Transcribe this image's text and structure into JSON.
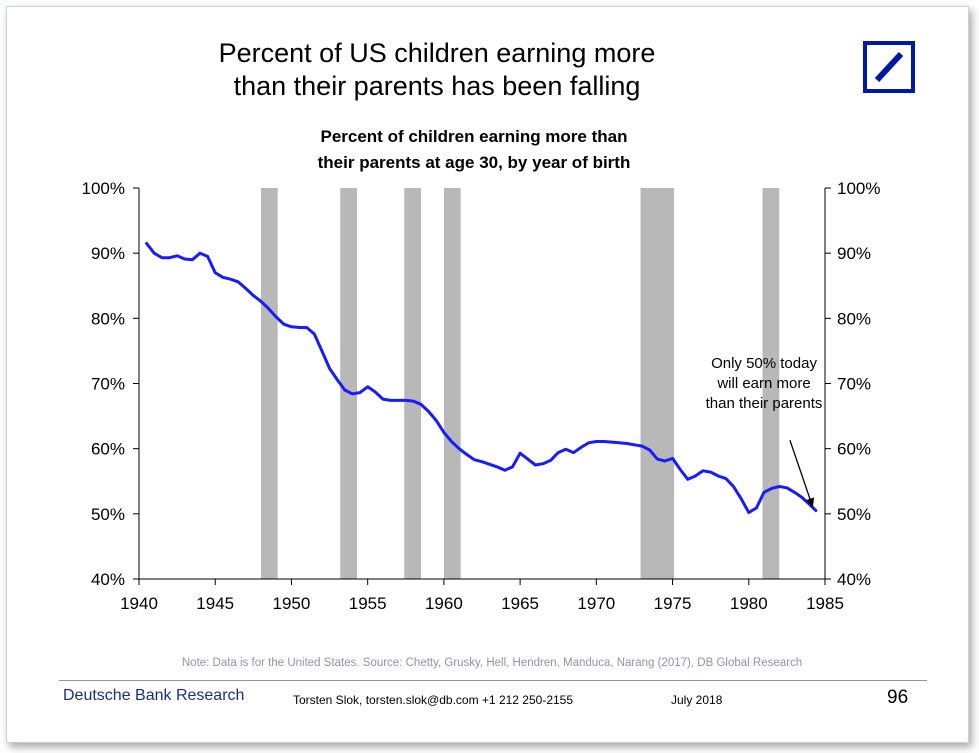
{
  "slide": {
    "title_lines": [
      "Percent of US children earning more",
      "than their parents has been falling"
    ],
    "footer": {
      "note": "Note: Data is for the United States. Source: Chetty, Grusky, Hell, Hendren, Manduca, Narang (2017), DB Global Research",
      "brand": "Deutsche Bank Research",
      "contact": "Torsten Slok, torsten.slok@db.com  +1 212 250-2155",
      "date": "July 2018",
      "page_number": "96"
    },
    "logo": {
      "name": "deutsche-bank-logo",
      "color": "#0018a8"
    }
  },
  "chart_data": {
    "type": "line",
    "title_lines": [
      "Percent of children earning more than",
      "their parents at age 30, by year of birth"
    ],
    "xlabel": "",
    "ylabel": "",
    "xlim": [
      1940,
      1985
    ],
    "ylim": [
      40,
      100
    ],
    "x_ticks": [
      "1940",
      "1945",
      "1950",
      "1955",
      "1960",
      "1965",
      "1970",
      "1975",
      "1980",
      "1985"
    ],
    "y_ticks_left": [
      "40%",
      "50%",
      "60%",
      "70%",
      "80%",
      "90%",
      "100%"
    ],
    "y_ticks_right": [
      "40%",
      "50%",
      "60%",
      "70%",
      "80%",
      "90%",
      "100%"
    ],
    "line_color": "#1a1aff",
    "shade_color": "#b8b8b8",
    "recession_bands": [
      [
        1948.0,
        1949.1
      ],
      [
        1953.2,
        1954.3
      ],
      [
        1957.4,
        1958.5
      ],
      [
        1960.0,
        1961.1
      ],
      [
        1972.9,
        1975.1
      ],
      [
        1980.9,
        1982.0
      ]
    ],
    "series": [
      {
        "x": [
          1940.5,
          1941,
          1941.5,
          1942,
          1942.5,
          1943,
          1943.5,
          1944,
          1944.5,
          1945,
          1945.5,
          1946,
          1946.5,
          1947,
          1947.5,
          1948,
          1948.5,
          1949,
          1949.5,
          1950,
          1950.5,
          1951,
          1951.5,
          1952,
          1952.5,
          1953,
          1953.5,
          1954,
          1954.5,
          1955,
          1955.5,
          1956,
          1956.5,
          1957,
          1957.5,
          1958,
          1958.5,
          1959,
          1959.5,
          1960,
          1960.5,
          1961,
          1961.5,
          1962,
          1962.5,
          1963,
          1963.5,
          1964,
          1964.5,
          1965,
          1965.5,
          1966,
          1966.5,
          1967,
          1967.5,
          1968,
          1968.5,
          1969,
          1969.5,
          1970,
          1970.5,
          1971,
          1971.5,
          1972,
          1972.5,
          1973,
          1973.5,
          1974,
          1974.5,
          1975,
          1975.5,
          1976,
          1976.5,
          1977,
          1977.5,
          1978,
          1978.5,
          1979,
          1979.5,
          1980,
          1980.5,
          1981,
          1981.5,
          1982,
          1982.5,
          1983,
          1983.5,
          1984,
          1984.4
        ],
        "values": [
          91.5,
          90.0,
          89.3,
          89.3,
          89.6,
          89.1,
          89.0,
          90.0,
          89.5,
          87.0,
          86.3,
          86.0,
          85.6,
          84.6,
          83.5,
          82.6,
          81.5,
          80.2,
          79.1,
          78.7,
          78.6,
          78.6,
          77.6,
          75.0,
          72.3,
          70.6,
          69.0,
          68.4,
          68.6,
          69.5,
          68.7,
          67.6,
          67.4,
          67.4,
          67.4,
          67.3,
          66.8,
          65.7,
          64.3,
          62.5,
          61.1,
          60.0,
          59.1,
          58.3,
          58.0,
          57.6,
          57.2,
          56.7,
          57.2,
          59.3,
          58.4,
          57.5,
          57.7,
          58.2,
          59.4,
          59.9,
          59.4,
          60.2,
          60.9,
          61.1,
          61.1,
          61.0,
          60.9,
          60.8,
          60.6,
          60.4,
          59.8,
          58.4,
          58.1,
          58.5,
          56.8,
          55.3,
          55.8,
          56.6,
          56.4,
          55.8,
          55.4,
          54.2,
          52.3,
          50.2,
          50.9,
          53.3,
          53.9,
          54.2,
          54.0,
          53.3,
          52.5,
          51.4,
          50.5
        ]
      }
    ],
    "annotation": {
      "text_lines": [
        "Only 50% today",
        "will earn more",
        "than their parents"
      ],
      "text_x": 1981.0,
      "text_y": 71.0,
      "arrow_from": [
        1982.7,
        61.3
      ],
      "arrow_to": [
        1984.2,
        51.0
      ]
    }
  }
}
